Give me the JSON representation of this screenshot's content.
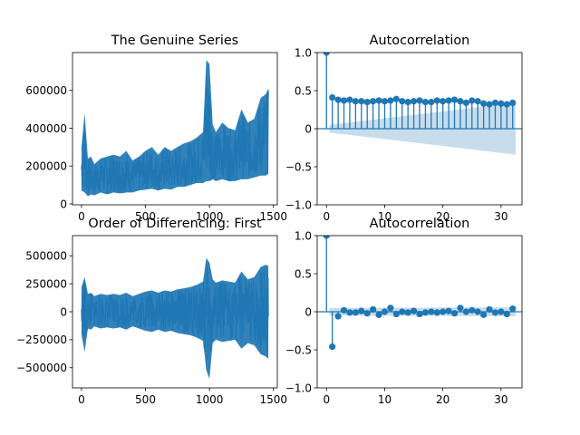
{
  "chart_data": [
    {
      "type": "line",
      "title": "The Genuine Series",
      "xlabel": "",
      "ylabel": "",
      "xlim": [
        -70,
        1530
      ],
      "ylim": [
        -5000,
        800000
      ],
      "xticks": [
        0,
        500,
        1000,
        1500
      ],
      "yticks": [
        0,
        200000,
        400000,
        600000
      ],
      "color": "#1f77b4",
      "x": [
        0,
        25,
        50,
        75,
        100,
        150,
        200,
        250,
        300,
        350,
        400,
        450,
        500,
        550,
        600,
        650,
        700,
        750,
        800,
        850,
        900,
        950,
        975,
        1000,
        1025,
        1050,
        1100,
        1150,
        1200,
        1250,
        1300,
        1350,
        1400,
        1440,
        1460
      ],
      "y": [
        130000,
        180000,
        110000,
        140000,
        90000,
        120000,
        110000,
        130000,
        125000,
        140000,
        120000,
        135000,
        150000,
        160000,
        140000,
        170000,
        150000,
        160000,
        170000,
        180000,
        190000,
        200000,
        280000,
        230000,
        210000,
        200000,
        240000,
        230000,
        220000,
        260000,
        240000,
        250000,
        270000,
        280000,
        300000
      ],
      "low": [
        70000,
        60000,
        40000,
        50000,
        45000,
        60000,
        50000,
        60000,
        55000,
        60000,
        60000,
        70000,
        75000,
        80000,
        70000,
        80000,
        75000,
        90000,
        90000,
        100000,
        110000,
        110000,
        120000,
        120000,
        130000,
        120000,
        130000,
        120000,
        120000,
        130000,
        130000,
        140000,
        150000,
        150000,
        160000
      ],
      "high": [
        300000,
        480000,
        240000,
        250000,
        210000,
        240000,
        250000,
        260000,
        250000,
        280000,
        230000,
        250000,
        280000,
        300000,
        260000,
        300000,
        280000,
        300000,
        320000,
        330000,
        350000,
        380000,
        760000,
        740000,
        420000,
        380000,
        430000,
        400000,
        390000,
        500000,
        430000,
        450000,
        560000,
        580000,
        610000
      ]
    },
    {
      "type": "scatter",
      "title": "Autocorrelation",
      "xlabel": "",
      "ylabel": "",
      "xlim": [
        -1.6,
        33.6
      ],
      "ylim": [
        -1.0,
        1.0
      ],
      "xticks": [
        0,
        10,
        20,
        30
      ],
      "yticks": [
        -1.0,
        -0.5,
        0.0,
        0.5,
        1.0
      ],
      "color": "#1f77b4",
      "lags": [
        0,
        1,
        2,
        3,
        4,
        5,
        6,
        7,
        8,
        9,
        10,
        11,
        12,
        13,
        14,
        15,
        16,
        17,
        18,
        19,
        20,
        21,
        22,
        23,
        24,
        25,
        26,
        27,
        28,
        29,
        30,
        31,
        32
      ],
      "values": [
        1.0,
        0.41,
        0.38,
        0.37,
        0.38,
        0.36,
        0.36,
        0.35,
        0.36,
        0.37,
        0.36,
        0.37,
        0.39,
        0.36,
        0.35,
        0.36,
        0.37,
        0.35,
        0.35,
        0.37,
        0.36,
        0.37,
        0.38,
        0.36,
        0.34,
        0.37,
        0.36,
        0.33,
        0.32,
        0.34,
        0.33,
        0.32,
        0.34
      ],
      "confint_at_lag1": 0.05,
      "confint_at_lag32": 0.34
    },
    {
      "type": "line",
      "title": "Order of Differencing: First",
      "xlabel": "",
      "ylabel": "",
      "xlim": [
        -70,
        1530
      ],
      "ylim": [
        -680000,
        680000
      ],
      "xticks": [
        0,
        500,
        1000,
        1500
      ],
      "yticks": [
        -500000,
        -250000,
        0,
        250000,
        500000
      ],
      "color": "#1f77b4",
      "x": [
        0,
        25,
        50,
        75,
        100,
        150,
        200,
        250,
        300,
        350,
        400,
        450,
        500,
        550,
        600,
        650,
        700,
        750,
        800,
        850,
        900,
        950,
        975,
        1000,
        1025,
        1050,
        1100,
        1150,
        1200,
        1250,
        1300,
        1350,
        1400,
        1440,
        1460
      ],
      "y": [
        0,
        0,
        0,
        0,
        0,
        0,
        0,
        0,
        0,
        0,
        0,
        0,
        0,
        0,
        0,
        0,
        0,
        0,
        0,
        0,
        0,
        0,
        0,
        0,
        0,
        0,
        0,
        0,
        0,
        0,
        0,
        0,
        0,
        0,
        0
      ],
      "low": [
        -200000,
        -360000,
        -150000,
        -160000,
        -130000,
        -150000,
        -140000,
        -150000,
        -140000,
        -160000,
        -130000,
        -150000,
        -170000,
        -180000,
        -160000,
        -180000,
        -170000,
        -190000,
        -200000,
        -210000,
        -230000,
        -260000,
        -520000,
        -600000,
        -280000,
        -250000,
        -270000,
        -260000,
        -250000,
        -330000,
        -280000,
        -300000,
        -380000,
        -400000,
        -420000
      ],
      "high": [
        220000,
        310000,
        160000,
        170000,
        140000,
        160000,
        150000,
        160000,
        150000,
        170000,
        140000,
        160000,
        180000,
        190000,
        170000,
        190000,
        180000,
        200000,
        210000,
        220000,
        240000,
        270000,
        480000,
        440000,
        290000,
        260000,
        280000,
        270000,
        260000,
        360000,
        290000,
        310000,
        400000,
        420000,
        410000
      ]
    },
    {
      "type": "scatter",
      "title": "Autocorrelation",
      "xlabel": "",
      "ylabel": "",
      "xlim": [
        -1.6,
        33.6
      ],
      "ylim": [
        -1.0,
        1.0
      ],
      "xticks": [
        0,
        10,
        20,
        30
      ],
      "yticks": [
        -1.0,
        -0.5,
        0.0,
        0.5,
        1.0
      ],
      "color": "#1f77b4",
      "lags": [
        0,
        1,
        2,
        3,
        4,
        5,
        6,
        7,
        8,
        9,
        10,
        11,
        12,
        13,
        14,
        15,
        16,
        17,
        18,
        19,
        20,
        21,
        22,
        23,
        24,
        25,
        26,
        27,
        28,
        29,
        30,
        31,
        32
      ],
      "values": [
        1.0,
        -0.46,
        -0.06,
        0.02,
        -0.01,
        -0.01,
        0.01,
        -0.02,
        0.03,
        -0.04,
        0.0,
        0.05,
        -0.03,
        0.0,
        -0.01,
        0.01,
        -0.03,
        -0.01,
        0.0,
        -0.01,
        0.0,
        0.01,
        -0.02,
        0.05,
        0.0,
        0.02,
        0.0,
        -0.04,
        0.03,
        -0.01,
        0.0,
        -0.03,
        0.04
      ],
      "confint_at_lag1": 0.05,
      "confint_at_lag32": 0.06
    }
  ]
}
